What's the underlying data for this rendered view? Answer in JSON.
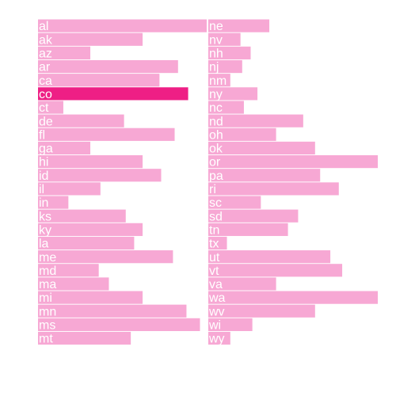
{
  "chart_data": {
    "type": "bar",
    "orientation": "horizontal",
    "layout": "two-column",
    "xlim": [
      0,
      100
    ],
    "colors": {
      "bar": "#f7a8d4",
      "highlight": "#ee1f85",
      "label": "#ffffff"
    },
    "highlighted_category": "co",
    "columns": [
      {
        "categories": [
          "al",
          "ak",
          "az",
          "ar",
          "ca",
          "co",
          "ct",
          "de",
          "fl",
          "ga",
          "hi",
          "id",
          "il",
          "in",
          "ks",
          "ky",
          "la",
          "me",
          "md",
          "ma",
          "mi",
          "mn",
          "ms",
          "mt"
        ],
        "values": [
          100,
          62,
          31,
          83,
          72,
          89,
          15,
          51,
          81,
          31,
          62,
          73,
          37,
          18,
          52,
          62,
          57,
          80,
          36,
          42,
          62,
          88,
          96,
          55
        ]
      },
      {
        "categories": [
          "ne",
          "nv",
          "nh",
          "nj",
          "nm",
          "ny",
          "nc",
          "nd",
          "oh",
          "ok",
          "or",
          "pa",
          "ri",
          "sc",
          "sd",
          "tn",
          "tx",
          "ut",
          "vt",
          "va",
          "wa",
          "wv",
          "wi",
          "wy"
        ],
        "values": [
          36,
          19,
          25,
          20,
          13,
          29,
          21,
          56,
          40,
          63,
          100,
          66,
          77,
          31,
          53,
          47,
          11,
          72,
          79,
          40,
          100,
          63,
          26,
          13
        ]
      }
    ]
  }
}
